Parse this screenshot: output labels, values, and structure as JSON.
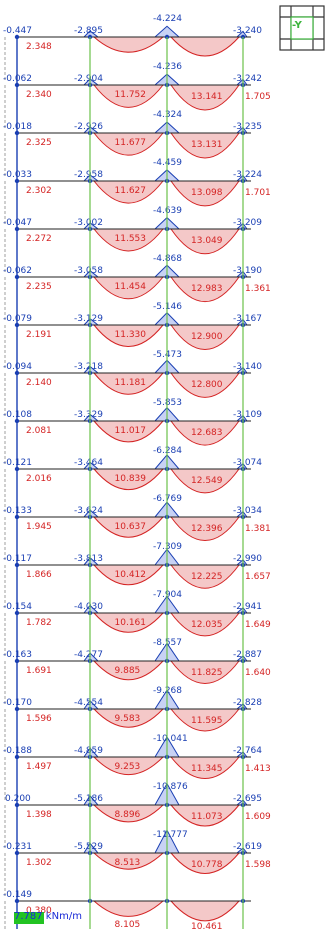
{
  "view_label": "-Y",
  "scale_label": "7.787 kNm/m",
  "colors": {
    "pos_fill": "#f4c8c8",
    "pos_stroke": "#d42424",
    "neg_fill": "#c8d2f4",
    "neg_stroke": "#1a3fb3",
    "column": "#6cc24a",
    "beam": "#222222"
  },
  "chart_data": {
    "type": "other",
    "description_units": "kNm/m",
    "floors": [
      {
        "a": "-0.447",
        "b": "-2.895",
        "m1": "",
        "c": "-4.224",
        "m2": "",
        "d": "-3.240",
        "low": "2.348",
        "dr": ""
      },
      {
        "a": "-0.062",
        "b": "-2.904",
        "m1": "11.752",
        "c": "-4.236",
        "m2": "13.141",
        "d": "-3.242",
        "low": "2.340",
        "dr": "1.705"
      },
      {
        "a": "-0.018",
        "b": "-2.926",
        "m1": "11.677",
        "c": "-4.324",
        "m2": "13.131",
        "d": "-3.235",
        "low": "2.325",
        "dr": ""
      },
      {
        "a": "-0.033",
        "b": "-2.958",
        "m1": "11.627",
        "c": "-4.459",
        "m2": "13.098",
        "d": "-3.224",
        "low": "2.302",
        "dr": "1.701"
      },
      {
        "a": "-0.047",
        "b": "-3.002",
        "m1": "11.553",
        "c": "-4.639",
        "m2": "13.049",
        "d": "-3.209",
        "low": "2.272",
        "dr": ""
      },
      {
        "a": "-0.062",
        "b": "-3.058",
        "m1": "11.454",
        "c": "-4.868",
        "m2": "12.983",
        "d": "-3.190",
        "low": "2.235",
        "dr": "1.361"
      },
      {
        "a": "-0.079",
        "b": "-3.129",
        "m1": "11.330",
        "c": "-5.146",
        "m2": "12.900",
        "d": "-3.167",
        "low": "2.191",
        "dr": ""
      },
      {
        "a": "-0.094",
        "b": "-3.218",
        "m1": "11.181",
        "c": "-5.473",
        "m2": "12.800",
        "d": "-3.140",
        "low": "2.140",
        "dr": ""
      },
      {
        "a": "-0.108",
        "b": "-3.329",
        "m1": "11.017",
        "c": "-5.853",
        "m2": "12.683",
        "d": "-3.109",
        "low": "2.081",
        "dr": ""
      },
      {
        "a": "-0.121",
        "b": "-3.464",
        "m1": "10.839",
        "c": "-6.284",
        "m2": "12.549",
        "d": "-3.074",
        "low": "2.016",
        "dr": ""
      },
      {
        "a": "-0.133",
        "b": "-3.624",
        "m1": "10.637",
        "c": "-6.769",
        "m2": "12.396",
        "d": "-3.034",
        "low": "1.945",
        "dr": "1.381"
      },
      {
        "a": "-0.117",
        "b": "-3.813",
        "m1": "10.412",
        "c": "-7.309",
        "m2": "12.225",
        "d": "-2.990",
        "low": "1.866",
        "dr": "1.657"
      },
      {
        "a": "-0.154",
        "b": "-4.030",
        "m1": "10.161",
        "c": "-7.904",
        "m2": "12.035",
        "d": "-2.941",
        "low": "1.782",
        "dr": "1.649"
      },
      {
        "a": "-0.163",
        "b": "-4.277",
        "m1": "9.885",
        "c": "-8.557",
        "m2": "11.825",
        "d": "-2.887",
        "low": "1.691",
        "dr": "1.640"
      },
      {
        "a": "-0.170",
        "b": "-4.554",
        "m1": "9.583",
        "c": "-9.268",
        "m2": "11.595",
        "d": "-2.828",
        "low": "1.596",
        "dr": ""
      },
      {
        "a": "-0.188",
        "b": "-4.859",
        "m1": "9.253",
        "c": "-10.041",
        "m2": "11.345",
        "d": "-2.764",
        "low": "1.497",
        "dr": "1.413"
      },
      {
        "a": "0.200",
        "b": "-5.186",
        "m1": "8.896",
        "c": "-10.876",
        "m2": "11.073",
        "d": "-2.695",
        "low": "1.398",
        "dr": "1.609"
      },
      {
        "a": "-0.231",
        "b": "-5.529",
        "m1": "8.513",
        "c": "-11.777",
        "m2": "10.778",
        "d": "-2.619",
        "low": "1.302",
        "dr": "1.598"
      },
      {
        "a": "-0.149",
        "b": "",
        "m1": "8.105",
        "c": "",
        "m2": "10.461",
        "d": "",
        "low": "0.380",
        "dr": ""
      }
    ]
  }
}
